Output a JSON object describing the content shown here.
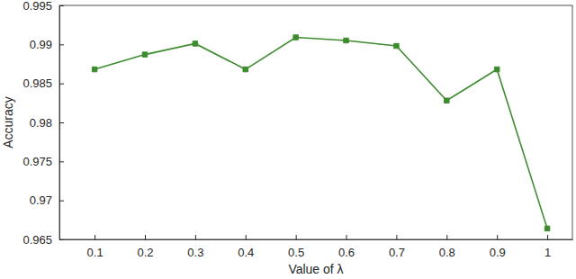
{
  "chart_data": {
    "type": "line",
    "x_label": "Value of λ",
    "y_label": "Accuracy",
    "x": [
      0.1,
      0.2,
      0.3,
      0.4,
      0.5,
      0.6,
      0.7,
      0.8,
      0.9,
      1
    ],
    "values": [
      0.9868,
      0.9887,
      0.9901,
      0.9868,
      0.9909,
      0.9905,
      0.9898,
      0.9828,
      0.9868,
      0.9664
    ],
    "color": "#3d8b2f",
    "marker": "square",
    "line_style": "solid",
    "xlim": [
      0.03,
      1.05
    ],
    "xticks": [
      0.1,
      0.2,
      0.3,
      0.4,
      0.5,
      0.6,
      0.7,
      0.8,
      0.9,
      1
    ],
    "ylim": [
      0.965,
      0.995
    ],
    "yticks": [
      0.965,
      0.97,
      0.975,
      0.98,
      0.985,
      0.99,
      0.995
    ],
    "grid": false
  }
}
